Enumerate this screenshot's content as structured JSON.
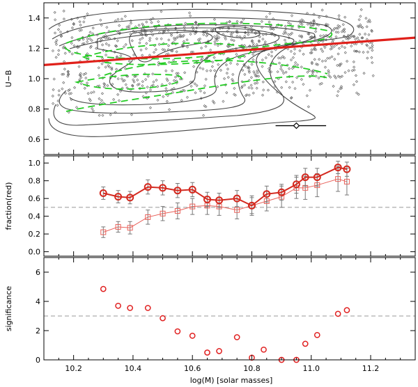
{
  "chart_data": [
    {
      "type": "scatter",
      "panel": "top",
      "ylabel": "U−B",
      "xlabel": "",
      "xlim": [
        10.1,
        11.35
      ],
      "ylim": [
        0.5,
        1.5
      ],
      "xticks": [
        10.2,
        10.4,
        10.6,
        10.8,
        11.0,
        11.2
      ],
      "yticks": [
        0.6,
        0.8,
        1.0,
        1.2,
        1.4
      ],
      "ytick_labels": [
        "0.6",
        "0.8",
        "1.0",
        "1.2",
        "1.4"
      ],
      "colors": {
        "points": "#555555",
        "contours": "#444444",
        "divider": "#e0201a",
        "dashed": "#22cc22"
      },
      "divider_line": {
        "x": [
          10.1,
          11.35
        ],
        "y": [
          1.09,
          1.27
        ]
      },
      "error_bar": {
        "x": 10.95,
        "y": 0.69,
        "xerr_low": 10.88,
        "xerr_high": 11.05
      },
      "scatter_seed": 7
    },
    {
      "type": "line",
      "panel": "middle",
      "ylabel": "fraction(red)",
      "xlim": [
        10.1,
        11.35
      ],
      "ylim": [
        -0.05,
        1.08
      ],
      "yticks": [
        0.0,
        0.2,
        0.4,
        0.6,
        0.8,
        1.0
      ],
      "ytick_labels": [
        "0.0",
        "0.2",
        "0.4",
        "0.6",
        "0.8",
        "1.0"
      ],
      "reference_line": 0.5,
      "series": [
        {
          "name": "circles",
          "color": "#d42a20",
          "x": [
            10.3,
            10.35,
            10.39,
            10.45,
            10.5,
            10.55,
            10.6,
            10.65,
            10.69,
            10.75,
            10.8,
            10.85,
            10.9,
            10.95,
            10.98,
            11.02,
            11.09,
            11.12
          ],
          "values": [
            0.66,
            0.62,
            0.61,
            0.73,
            0.72,
            0.69,
            0.7,
            0.59,
            0.58,
            0.6,
            0.52,
            0.65,
            0.67,
            0.76,
            0.84,
            0.84,
            0.95,
            0.93
          ],
          "err": [
            0.07,
            0.07,
            0.07,
            0.08,
            0.08,
            0.08,
            0.08,
            0.08,
            0.08,
            0.09,
            0.09,
            0.09,
            0.09,
            0.1,
            0.1,
            0.1,
            0.07,
            0.08
          ]
        },
        {
          "name": "squares",
          "color": "#e8615a",
          "x": [
            10.3,
            10.35,
            10.39,
            10.45,
            10.5,
            10.55,
            10.6,
            10.65,
            10.69,
            10.75,
            10.8,
            10.85,
            10.9,
            10.95,
            10.98,
            11.02,
            11.09,
            11.12
          ],
          "values": [
            0.22,
            0.28,
            0.27,
            0.39,
            0.43,
            0.46,
            0.51,
            0.52,
            0.51,
            0.47,
            0.52,
            0.57,
            0.62,
            0.72,
            0.72,
            0.75,
            0.82,
            0.79
          ],
          "err": [
            0.06,
            0.06,
            0.07,
            0.08,
            0.08,
            0.09,
            0.09,
            0.1,
            0.1,
            0.1,
            0.11,
            0.11,
            0.12,
            0.12,
            0.13,
            0.13,
            0.14,
            0.15
          ]
        }
      ]
    },
    {
      "type": "scatter",
      "panel": "bottom",
      "ylabel": "significance",
      "xlabel": "log(M) [solar masses]",
      "xlim": [
        10.1,
        11.35
      ],
      "ylim": [
        0,
        7
      ],
      "xticks": [
        10.2,
        10.4,
        10.6,
        10.8,
        11.0,
        11.2
      ],
      "xtick_labels": [
        "10.2",
        "10.4",
        "10.6",
        "10.8",
        "11.0",
        "11.2"
      ],
      "yticks": [
        0,
        2,
        4,
        6
      ],
      "ytick_labels": [
        "0",
        "2",
        "4",
        "6"
      ],
      "reference_line": 3,
      "color": "#e02020",
      "x": [
        10.3,
        10.35,
        10.39,
        10.45,
        10.5,
        10.55,
        10.6,
        10.65,
        10.69,
        10.75,
        10.8,
        10.84,
        10.9,
        10.95,
        10.98,
        11.02,
        11.09,
        11.12
      ],
      "values": [
        4.85,
        3.7,
        3.55,
        3.55,
        2.85,
        1.95,
        1.65,
        0.5,
        0.6,
        1.55,
        0.15,
        0.7,
        0.0,
        0.0,
        1.1,
        1.7,
        3.15,
        3.4
      ]
    }
  ]
}
